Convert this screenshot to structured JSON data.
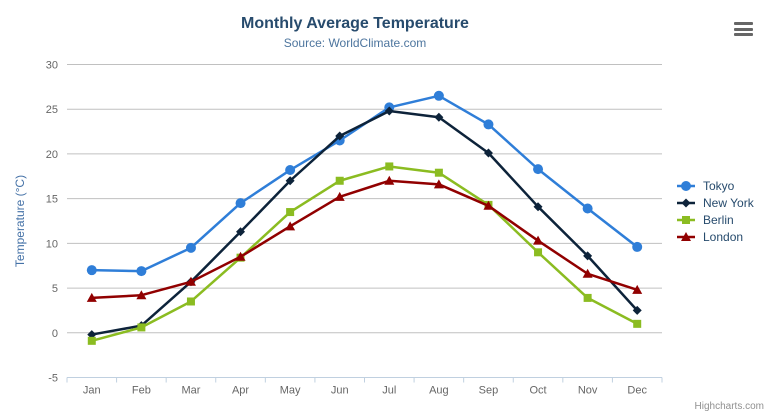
{
  "chart": {
    "title": "Monthly Average Temperature",
    "subtitle": "Source: WorldClimate.com",
    "credits": "Highcharts.com",
    "background": "#ffffff",
    "title_color": "#274b6d",
    "subtitle_color": "#4d759e",
    "gridline_color": "#c0c0c0",
    "axis_line_color": "#c0d0e0",
    "axis_label_color": "#666666",
    "yaxis_title_color": "#4572a7"
  },
  "chart_data": {
    "type": "line",
    "title": "Monthly Average Temperature",
    "subtitle": "Source: WorldClimate.com",
    "categories": [
      "Jan",
      "Feb",
      "Mar",
      "Apr",
      "May",
      "Jun",
      "Jul",
      "Aug",
      "Sep",
      "Oct",
      "Nov",
      "Dec"
    ],
    "series": [
      {
        "name": "Tokyo",
        "color": "#2f7ed8",
        "marker": "circle",
        "values": [
          7.0,
          6.9,
          9.5,
          14.5,
          18.2,
          21.5,
          25.2,
          26.5,
          23.3,
          18.3,
          13.9,
          9.6
        ]
      },
      {
        "name": "New York",
        "color": "#0d233a",
        "marker": "diamond",
        "values": [
          -0.2,
          0.8,
          5.7,
          11.3,
          17.0,
          22.0,
          24.8,
          24.1,
          20.1,
          14.1,
          8.6,
          2.5
        ]
      },
      {
        "name": "Berlin",
        "color": "#8bbc21",
        "marker": "square",
        "values": [
          -0.9,
          0.6,
          3.5,
          8.4,
          13.5,
          17.0,
          18.6,
          17.9,
          14.3,
          9.0,
          3.9,
          1.0
        ]
      },
      {
        "name": "London",
        "color": "#910000",
        "marker": "triangle",
        "values": [
          3.9,
          4.2,
          5.7,
          8.5,
          11.9,
          15.2,
          17.0,
          16.6,
          14.2,
          10.3,
          6.6,
          4.8
        ]
      }
    ],
    "xlabel": "",
    "ylabel": "Temperature (°C)",
    "ylim": [
      -5,
      30
    ],
    "ytick_interval": 5,
    "grid": true,
    "legend_position": "right"
  }
}
